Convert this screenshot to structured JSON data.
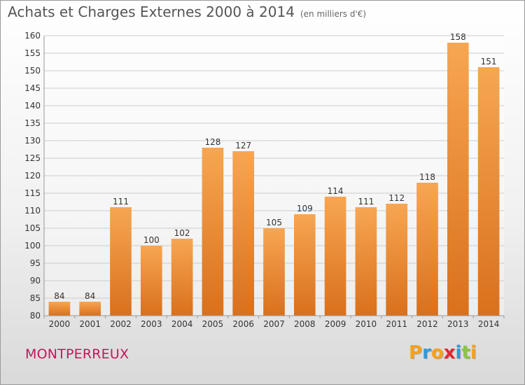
{
  "header": {
    "title": "Achats et Charges Externes 2000 à 2014",
    "subtitle": "(en milliers d'€)"
  },
  "footer": {
    "town": "MONTPERREUX",
    "logo_letters": [
      "P",
      "r",
      "o",
      "x",
      "i",
      "t",
      "i"
    ],
    "logo_colors": [
      "#f7a21b",
      "#2f9ad8",
      "#f7a21b",
      "#e3262f",
      "#2f9ad8",
      "#8cc63e",
      "#f7a21b"
    ]
  },
  "chart_data": {
    "type": "bar",
    "title": "Achats et Charges Externes 2000 à 2014",
    "subtitle": "(en milliers d'€)",
    "categories": [
      "2000",
      "2001",
      "2002",
      "2003",
      "2004",
      "2005",
      "2006",
      "2007",
      "2008",
      "2009",
      "2010",
      "2011",
      "2012",
      "2013",
      "2014"
    ],
    "values": [
      84,
      84,
      111,
      100,
      102,
      128,
      127,
      105,
      109,
      114,
      111,
      112,
      118,
      158,
      151
    ],
    "ylim": [
      80,
      160
    ],
    "yticks": [
      80,
      85,
      90,
      95,
      100,
      105,
      110,
      115,
      120,
      125,
      130,
      135,
      140,
      145,
      150,
      155,
      160
    ],
    "grid": true,
    "colors": {
      "bar_top": "#f7a652",
      "bar_bottom": "#d9701c",
      "grid": "#cccccc",
      "axis_text": "#333333"
    }
  }
}
